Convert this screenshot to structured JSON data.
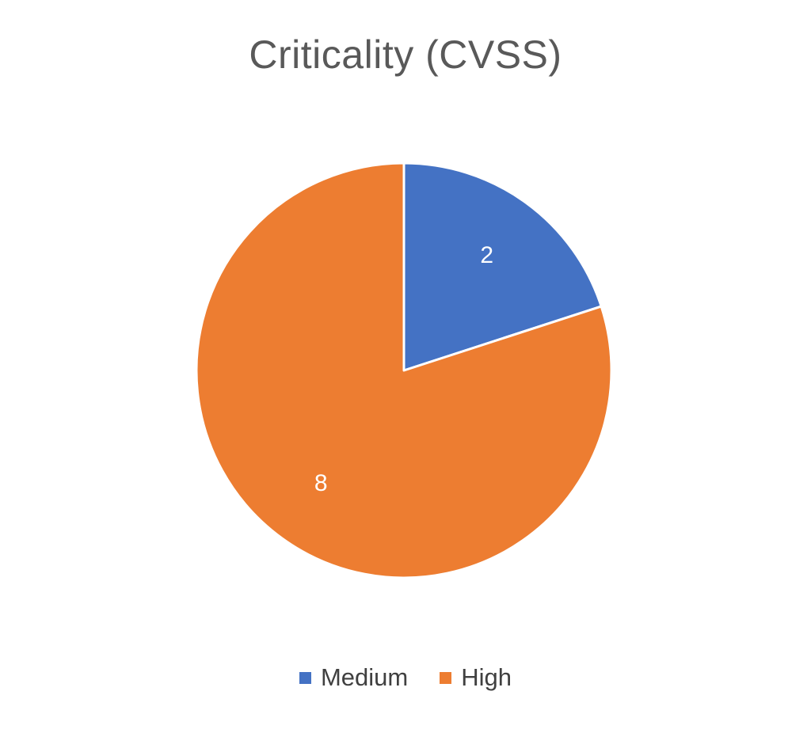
{
  "colors": {
    "Medium": "#4472C4",
    "High": "#ED7D31",
    "slice_border": "#FFFFFF",
    "data_label": "#FFFFFF"
  },
  "chart_data": {
    "type": "pie",
    "title": "Criticality (CVSS)",
    "categories": [
      "Medium",
      "High"
    ],
    "values": [
      2,
      8
    ],
    "data_labels": [
      "2",
      "8"
    ],
    "start_angle_deg": 0,
    "direction": "clockwise",
    "legend": {
      "position": "bottom",
      "entries": [
        "Medium",
        "High"
      ]
    }
  }
}
